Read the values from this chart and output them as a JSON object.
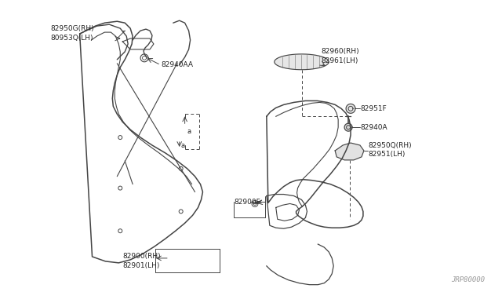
{
  "bg_color": "#ffffff",
  "line_color": "#444444",
  "text_color": "#222222",
  "watermark": "JRP80000",
  "figure_width": 6.4,
  "figure_height": 3.72,
  "dpi": 100,
  "labels": {
    "82950G_RH": "82950G(RH)",
    "80953Q_LH": "80953Q(LH)",
    "82940AA": "82940AA",
    "82960_RH": "82960(RH)",
    "82961_LH": "82961(LH)",
    "82951F": "82951F",
    "82940A": "82940A",
    "82950Q_RH": "82950Q(RH)",
    "82951_LH": "82951(LH)",
    "82900F": "82900F",
    "82900_RH": "82900(RH)",
    "82901_LH": "82901(LH)"
  }
}
